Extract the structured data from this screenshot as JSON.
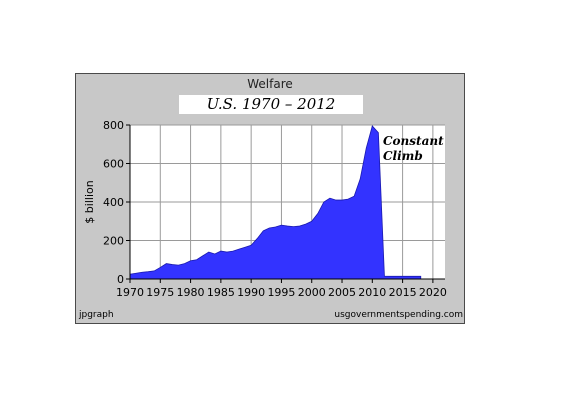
{
  "chart_data": {
    "type": "area",
    "title": "Welfare",
    "subtitle": "U.S. 1970 – 2012",
    "ylabel": "$ billion",
    "xlabel": "",
    "xlim": [
      1970,
      2022
    ],
    "ylim": [
      0,
      800
    ],
    "x_ticks": [
      1970,
      1975,
      1980,
      1985,
      1990,
      1995,
      2000,
      2005,
      2010,
      2015,
      2020
    ],
    "y_ticks": [
      0,
      200,
      400,
      600,
      800
    ],
    "grid": true,
    "fill_color": "#3333ff",
    "annotation": [
      "Constant",
      "Climb"
    ],
    "series": [
      {
        "x": [
          1970,
          1971,
          1972,
          1973,
          1974,
          1975,
          1976,
          1977,
          1978,
          1979,
          1980,
          1981,
          1982,
          1983,
          1984,
          1985,
          1986,
          1987,
          1988,
          1989,
          1990,
          1991,
          1992,
          1993,
          1994,
          1995,
          1996,
          1997,
          1998,
          1999,
          2000,
          2001,
          2002,
          2003,
          2004,
          2005,
          2006,
          2007,
          2008,
          2009,
          2010,
          2011,
          2012,
          2013,
          2014,
          2015,
          2016,
          2017,
          2018
        ],
        "values": [
          25,
          30,
          35,
          38,
          42,
          60,
          80,
          75,
          72,
          80,
          95,
          100,
          120,
          140,
          130,
          145,
          140,
          145,
          155,
          165,
          175,
          210,
          250,
          265,
          270,
          280,
          275,
          272,
          275,
          285,
          300,
          340,
          400,
          420,
          410,
          410,
          415,
          430,
          520,
          680,
          795,
          760,
          15,
          14,
          14,
          14,
          14,
          14,
          14
        ]
      }
    ]
  },
  "footer": {
    "left": "jpgraph",
    "right": "usgovernmentspending.com"
  }
}
